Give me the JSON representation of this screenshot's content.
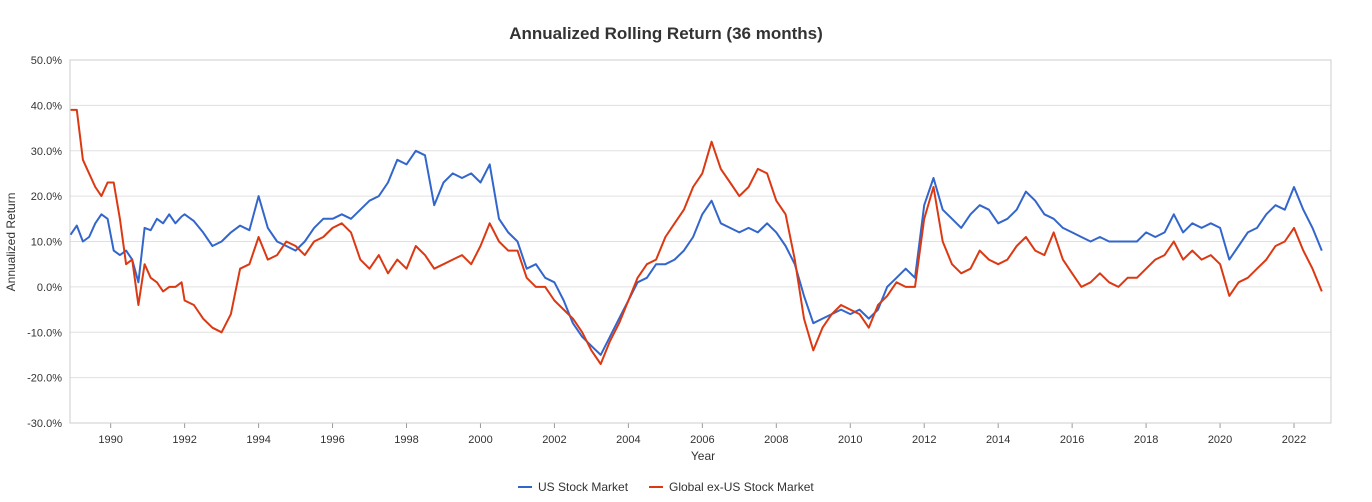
{
  "chart_data": {
    "type": "line",
    "title": "Annualized Rolling Return (36 months)",
    "xlabel": "Year",
    "ylabel": "Annualized Return",
    "xlim": [
      1988.9,
      2023.0
    ],
    "ylim": [
      -30,
      50
    ],
    "y_ticks": [
      -30,
      -20,
      -10,
      0,
      10,
      20,
      30,
      40,
      50
    ],
    "y_tick_labels": [
      "-30.0%",
      "-20.0%",
      "-10.0%",
      "0.0%",
      "10.0%",
      "20.0%",
      "30.0%",
      "40.0%",
      "50.0%"
    ],
    "x_ticks": [
      1990,
      1992,
      1994,
      1996,
      1998,
      2000,
      2002,
      2004,
      2006,
      2008,
      2010,
      2012,
      2014,
      2016,
      2018,
      2020,
      2022
    ],
    "x_tick_labels": [
      "1990",
      "1992",
      "1994",
      "1996",
      "1998",
      "2000",
      "2002",
      "2004",
      "2006",
      "2008",
      "2010",
      "2012",
      "2014",
      "2016",
      "2018",
      "2020",
      "2022"
    ],
    "grid": true,
    "legend_position": "bottom",
    "series": [
      {
        "name": "US Stock Market",
        "color": "#3366cc",
        "x": [
          1988.917,
          1989.083,
          1989.25,
          1989.417,
          1989.583,
          1989.75,
          1989.917,
          1990.083,
          1990.25,
          1990.417,
          1990.583,
          1990.75,
          1990.917,
          1991.083,
          1991.25,
          1991.417,
          1991.583,
          1991.75,
          1991.917,
          1992.0,
          1992.25,
          1992.5,
          1992.75,
          1993.0,
          1993.25,
          1993.5,
          1993.75,
          1994.0,
          1994.25,
          1994.5,
          1994.75,
          1995.0,
          1995.25,
          1995.5,
          1995.75,
          1996.0,
          1996.25,
          1996.5,
          1996.75,
          1997.0,
          1997.25,
          1997.5,
          1997.75,
          1998.0,
          1998.25,
          1998.5,
          1998.75,
          1999.0,
          1999.25,
          1999.5,
          1999.75,
          2000.0,
          2000.25,
          2000.5,
          2000.75,
          2001.0,
          2001.25,
          2001.5,
          2001.75,
          2002.0,
          2002.25,
          2002.5,
          2002.75,
          2003.0,
          2003.25,
          2003.5,
          2003.75,
          2004.0,
          2004.25,
          2004.5,
          2004.75,
          2005.0,
          2005.25,
          2005.5,
          2005.75,
          2006.0,
          2006.25,
          2006.5,
          2006.75,
          2007.0,
          2007.25,
          2007.5,
          2007.75,
          2008.0,
          2008.25,
          2008.5,
          2008.75,
          2009.0,
          2009.25,
          2009.5,
          2009.75,
          2010.0,
          2010.25,
          2010.5,
          2010.75,
          2011.0,
          2011.25,
          2011.5,
          2011.75,
          2012.0,
          2012.25,
          2012.5,
          2012.75,
          2013.0,
          2013.25,
          2013.5,
          2013.75,
          2014.0,
          2014.25,
          2014.5,
          2014.75,
          2015.0,
          2015.25,
          2015.5,
          2015.75,
          2016.0,
          2016.25,
          2016.5,
          2016.75,
          2017.0,
          2017.25,
          2017.5,
          2017.75,
          2018.0,
          2018.25,
          2018.5,
          2018.75,
          2019.0,
          2019.25,
          2019.5,
          2019.75,
          2020.0,
          2020.25,
          2020.5,
          2020.75,
          2021.0,
          2021.25,
          2021.5,
          2021.75,
          2022.0,
          2022.25,
          2022.5,
          2022.75
        ],
        "values": [
          11.5,
          13.5,
          10.0,
          11.0,
          14.0,
          16.0,
          15.0,
          8.0,
          7.0,
          8.0,
          6.0,
          1.0,
          13.0,
          12.5,
          15.0,
          14.0,
          16.0,
          14.0,
          15.5,
          16.0,
          14.5,
          12.0,
          9.0,
          10.0,
          12.0,
          13.5,
          12.5,
          20.0,
          13.0,
          10.0,
          9.0,
          8.0,
          10.0,
          13.0,
          15.0,
          15.0,
          16.0,
          15.0,
          17.0,
          19.0,
          20.0,
          23.0,
          28.0,
          27.0,
          30.0,
          29.0,
          18.0,
          23.0,
          25.0,
          24.0,
          25.0,
          23.0,
          27.0,
          15.0,
          12.0,
          10.0,
          4.0,
          5.0,
          2.0,
          1.0,
          -3.0,
          -8.0,
          -11.0,
          -13.0,
          -15.0,
          -11.0,
          -7.0,
          -3.0,
          1.0,
          2.0,
          5.0,
          5.0,
          6.0,
          8.0,
          11.0,
          16.0,
          19.0,
          14.0,
          13.0,
          12.0,
          13.0,
          12.0,
          14.0,
          12.0,
          9.0,
          5.0,
          -2.0,
          -8.0,
          -7.0,
          -6.0,
          -5.0,
          -6.0,
          -5.0,
          -7.0,
          -5.0,
          0.0,
          2.0,
          4.0,
          2.0,
          18.0,
          24.0,
          17.0,
          15.0,
          13.0,
          16.0,
          18.0,
          17.0,
          14.0,
          15.0,
          17.0,
          21.0,
          19.0,
          16.0,
          15.0,
          13.0,
          12.0,
          11.0,
          10.0,
          11.0,
          10.0,
          10.0,
          10.0,
          10.0,
          12.0,
          11.0,
          12.0,
          16.0,
          12.0,
          14.0,
          13.0,
          14.0,
          13.0,
          6.0,
          9.0,
          12.0,
          13.0,
          16.0,
          18.0,
          17.0,
          22.0,
          17.0,
          13.0,
          8.0
        ]
      },
      {
        "name": "Global ex-US Stock Market",
        "color": "#dc3912",
        "x": [
          1988.917,
          1989.083,
          1989.25,
          1989.417,
          1989.583,
          1989.75,
          1989.917,
          1990.083,
          1990.25,
          1990.417,
          1990.583,
          1990.75,
          1990.917,
          1991.083,
          1991.25,
          1991.417,
          1991.583,
          1991.75,
          1991.917,
          1992.0,
          1992.25,
          1992.5,
          1992.75,
          1993.0,
          1993.25,
          1993.5,
          1993.75,
          1994.0,
          1994.25,
          1994.5,
          1994.75,
          1995.0,
          1995.25,
          1995.5,
          1995.75,
          1996.0,
          1996.25,
          1996.5,
          1996.75,
          1997.0,
          1997.25,
          1997.5,
          1997.75,
          1998.0,
          1998.25,
          1998.5,
          1998.75,
          1999.0,
          1999.25,
          1999.5,
          1999.75,
          2000.0,
          2000.25,
          2000.5,
          2000.75,
          2001.0,
          2001.25,
          2001.5,
          2001.75,
          2002.0,
          2002.25,
          2002.5,
          2002.75,
          2003.0,
          2003.25,
          2003.5,
          2003.75,
          2004.0,
          2004.25,
          2004.5,
          2004.75,
          2005.0,
          2005.25,
          2005.5,
          2005.75,
          2006.0,
          2006.25,
          2006.5,
          2006.75,
          2007.0,
          2007.25,
          2007.5,
          2007.75,
          2008.0,
          2008.25,
          2008.5,
          2008.75,
          2009.0,
          2009.25,
          2009.5,
          2009.75,
          2010.0,
          2010.25,
          2010.5,
          2010.75,
          2011.0,
          2011.25,
          2011.5,
          2011.75,
          2012.0,
          2012.25,
          2012.5,
          2012.75,
          2013.0,
          2013.25,
          2013.5,
          2013.75,
          2014.0,
          2014.25,
          2014.5,
          2014.75,
          2015.0,
          2015.25,
          2015.5,
          2015.75,
          2016.0,
          2016.25,
          2016.5,
          2016.75,
          2017.0,
          2017.25,
          2017.5,
          2017.75,
          2018.0,
          2018.25,
          2018.5,
          2018.75,
          2019.0,
          2019.25,
          2019.5,
          2019.75,
          2020.0,
          2020.25,
          2020.5,
          2020.75,
          2021.0,
          2021.25,
          2021.5,
          2021.75,
          2022.0,
          2022.25,
          2022.5,
          2022.75
        ],
        "values": [
          39.0,
          39.0,
          28.0,
          25.0,
          22.0,
          20.0,
          23.0,
          23.0,
          15.0,
          5.0,
          6.0,
          -4.0,
          5.0,
          2.0,
          1.0,
          -1.0,
          0.0,
          0.0,
          1.0,
          -3.0,
          -4.0,
          -7.0,
          -9.0,
          -10.0,
          -6.0,
          4.0,
          5.0,
          11.0,
          6.0,
          7.0,
          10.0,
          9.0,
          7.0,
          10.0,
          11.0,
          13.0,
          14.0,
          12.0,
          6.0,
          4.0,
          7.0,
          3.0,
          6.0,
          4.0,
          9.0,
          7.0,
          4.0,
          5.0,
          6.0,
          7.0,
          5.0,
          9.0,
          14.0,
          10.0,
          8.0,
          8.0,
          2.0,
          0.0,
          0.0,
          -3.0,
          -5.0,
          -7.0,
          -10.0,
          -14.0,
          -17.0,
          -12.0,
          -8.0,
          -3.0,
          2.0,
          5.0,
          6.0,
          11.0,
          14.0,
          17.0,
          22.0,
          25.0,
          32.0,
          26.0,
          23.0,
          20.0,
          22.0,
          26.0,
          25.0,
          19.0,
          16.0,
          6.0,
          -7.0,
          -14.0,
          -9.0,
          -6.0,
          -4.0,
          -5.0,
          -6.0,
          -9.0,
          -4.0,
          -2.0,
          1.0,
          0.0,
          0.0,
          15.0,
          22.0,
          10.0,
          5.0,
          3.0,
          4.0,
          8.0,
          6.0,
          5.0,
          6.0,
          9.0,
          11.0,
          8.0,
          7.0,
          12.0,
          6.0,
          3.0,
          0.0,
          1.0,
          3.0,
          1.0,
          0.0,
          2.0,
          2.0,
          4.0,
          6.0,
          7.0,
          10.0,
          6.0,
          8.0,
          6.0,
          7.0,
          5.0,
          -2.0,
          1.0,
          2.0,
          4.0,
          6.0,
          9.0,
          10.0,
          13.0,
          8.0,
          4.0,
          -1.0
        ]
      }
    ]
  }
}
